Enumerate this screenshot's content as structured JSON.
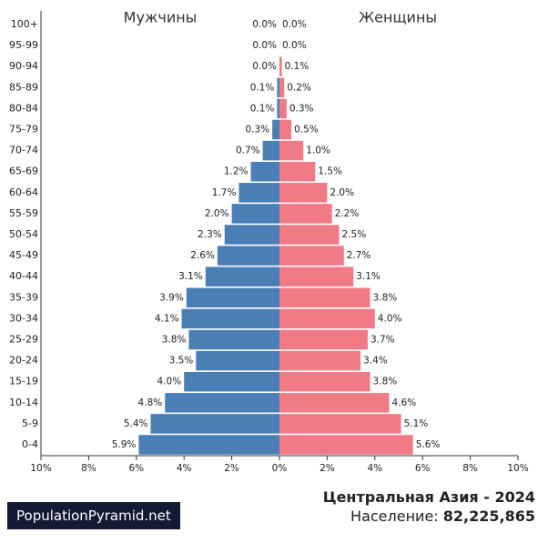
{
  "chart_data": {
    "type": "bar",
    "orientation": "horizontal-population-pyramid",
    "categories": [
      "0-4",
      "5-9",
      "10-14",
      "15-19",
      "20-24",
      "25-29",
      "30-34",
      "35-39",
      "40-44",
      "45-49",
      "50-54",
      "55-59",
      "60-64",
      "65-69",
      "70-74",
      "75-79",
      "80-84",
      "85-89",
      "90-94",
      "95-99",
      "100+"
    ],
    "series": [
      {
        "name": "Мужчины",
        "color": "#4a7fb5",
        "values": [
          5.9,
          5.4,
          4.8,
          4.0,
          3.5,
          3.8,
          4.1,
          3.9,
          3.1,
          2.6,
          2.3,
          2.0,
          1.7,
          1.2,
          0.7,
          0.3,
          0.1,
          0.1,
          0.0,
          0.0,
          0.0
        ],
        "labels": [
          "5.9%",
          "5.4%",
          "4.8%",
          "4.0%",
          "3.5%",
          "3.8%",
          "4.1%",
          "3.9%",
          "3.1%",
          "2.6%",
          "2.3%",
          "2.0%",
          "1.7%",
          "1.2%",
          "0.7%",
          "0.3%",
          "0.1%",
          "0.1%",
          "0.0%",
          "0.0%",
          "0.0%"
        ]
      },
      {
        "name": "Женщины",
        "color": "#f07b87",
        "values": [
          5.6,
          5.1,
          4.6,
          3.8,
          3.4,
          3.7,
          4.0,
          3.8,
          3.1,
          2.7,
          2.5,
          2.2,
          2.0,
          1.5,
          1.0,
          0.5,
          0.3,
          0.2,
          0.1,
          0.0,
          0.0
        ],
        "labels": [
          "5.6%",
          "5.1%",
          "4.6%",
          "3.8%",
          "3.4%",
          "3.7%",
          "4.0%",
          "3.8%",
          "3.1%",
          "2.7%",
          "2.5%",
          "2.2%",
          "2.0%",
          "1.5%",
          "1.0%",
          "0.5%",
          "0.3%",
          "0.2%",
          "0.1%",
          "0.0%",
          "0.0%"
        ]
      }
    ],
    "x_ticks_left": [
      "10%",
      "8%",
      "6%",
      "4%",
      "2%",
      "0%"
    ],
    "x_ticks_right": [
      "0%",
      "2%",
      "4%",
      "6%",
      "8%",
      "10%"
    ],
    "xlim": [
      0,
      10
    ],
    "grid": false,
    "title": "Центральная Азия - 2024"
  },
  "footer": {
    "title": "Центральная Азия - 2024",
    "population_label": "Население:",
    "population_value": "82,225,865",
    "watermark": "PopulationPyramid.net"
  }
}
